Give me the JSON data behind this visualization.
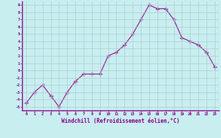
{
  "x": [
    0,
    1,
    2,
    3,
    4,
    5,
    6,
    7,
    8,
    9,
    10,
    11,
    12,
    13,
    14,
    15,
    16,
    17,
    18,
    19,
    20,
    21,
    22,
    23
  ],
  "y": [
    -4.5,
    -3.0,
    -2.0,
    -3.5,
    -5.0,
    -3.0,
    -1.5,
    -0.5,
    -0.5,
    -0.5,
    2.0,
    2.5,
    3.5,
    5.0,
    7.0,
    9.0,
    8.5,
    8.5,
    7.0,
    4.5,
    4.0,
    3.5,
    2.5,
    0.5
  ],
  "line_color": "#9b309b",
  "marker": "+",
  "marker_size": 4,
  "marker_lw": 1.0,
  "bg_color": "#c8eef0",
  "grid_color": "#aacccc",
  "xlabel": "Windchill (Refroidissement éolien,°C)",
  "ylim": [
    -5.5,
    9.5
  ],
  "xlim": [
    -0.5,
    23.5
  ],
  "xticks": [
    0,
    1,
    2,
    3,
    4,
    5,
    6,
    7,
    8,
    9,
    10,
    11,
    12,
    13,
    14,
    15,
    16,
    17,
    18,
    19,
    20,
    21,
    22,
    23
  ],
  "yticks": [
    -5,
    -4,
    -3,
    -2,
    -1,
    0,
    1,
    2,
    3,
    4,
    5,
    6,
    7,
    8,
    9
  ],
  "tick_color": "#880088",
  "label_color": "#880088",
  "border_color": "#880088",
  "line_lw": 1.0,
  "tick_fontsize": 4.0,
  "xlabel_fontsize": 5.5
}
